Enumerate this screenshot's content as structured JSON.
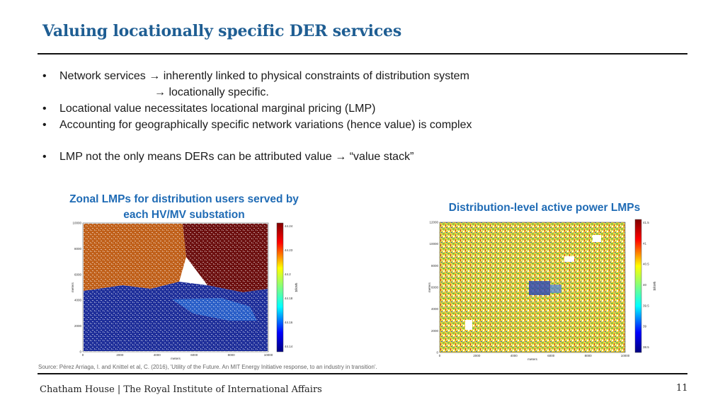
{
  "slide": {
    "title": "Valuing locationally specific DER services",
    "bullets": [
      {
        "pre": "Network services ",
        "arrow": "→",
        "post": " inherently linked to physical constraints of distribution system"
      },
      {
        "cont_arrow": "→",
        "cont_text": " locationally specific."
      },
      {
        "text": "Locational value necessitates locational marginal pricing (LMP)"
      },
      {
        "text": "Accounting for geographically specific network variations (hence value) is complex"
      },
      {
        "pre": "LMP not the only means DERs can be attributed value ",
        "arrow": "→",
        "post": " “value stack”"
      }
    ],
    "bullet_symbol": "•",
    "captions": {
      "left_line1": "Zonal LMPs for distribution users served by",
      "left_line2": "each HV/MV substation",
      "right": "Distribution-level active power LMPs"
    },
    "source": "Source: Pérez Arriaga, I. and Knittel et al, C. (2016), 'Utility of the Future. An MIT Energy Initiative response, to an industry in transition'.",
    "footer": "Chatham House  |  The Royal Institute of International Affairs",
    "page_number": "11",
    "colors": {
      "title": "#1f5e93",
      "caption": "#1f6bb5"
    }
  },
  "maps": {
    "left": {
      "y_ticks": [
        "10000",
        "8000",
        "6000",
        "4000",
        "2000",
        "0"
      ],
      "x_ticks": [
        "0",
        "2000",
        "4000",
        "6000",
        "8000",
        "10000"
      ],
      "ylabel": "meters",
      "xlabel": "meters",
      "colorbar_ticks": [
        "44.24",
        "44.23",
        "44.2",
        "44.18",
        "44.16",
        "44.14"
      ],
      "colorbar_label": "$/kWh"
    },
    "right": {
      "y_ticks": [
        "12000",
        "10000",
        "8000",
        "6000",
        "4000",
        "2000",
        "0"
      ],
      "x_ticks": [
        "0",
        "2000",
        "4000",
        "6000",
        "8000",
        "10000"
      ],
      "ylabel": "meters",
      "xlabel": "meters",
      "colorbar_ticks": [
        "41.5",
        "41",
        "40.5",
        "40",
        "39.5",
        "39",
        "38.5"
      ],
      "colorbar_label": "$/kWh"
    }
  }
}
